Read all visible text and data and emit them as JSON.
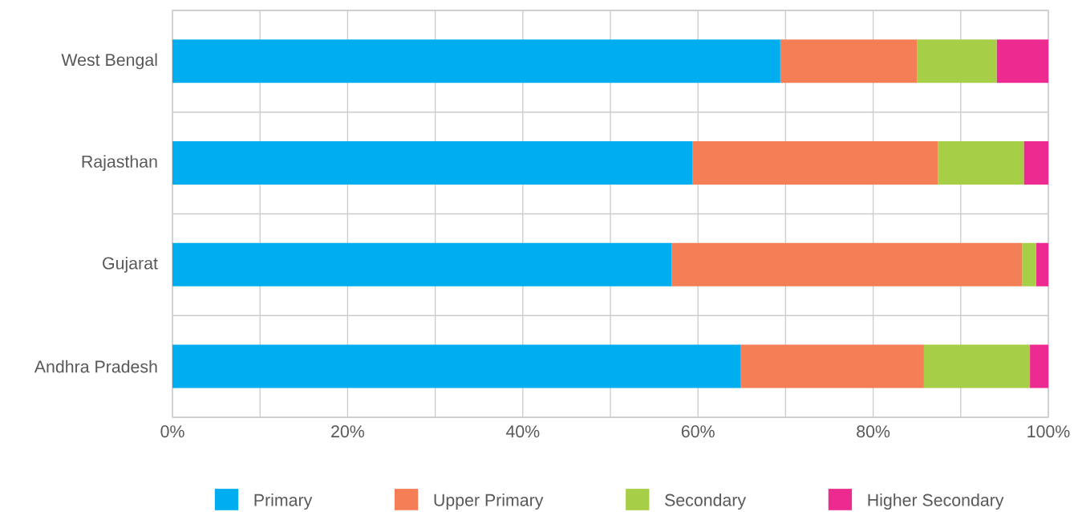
{
  "chart_data": {
    "type": "bar",
    "orientation": "horizontal",
    "stacked": true,
    "categories": [
      "West Bengal",
      "Rajasthan",
      "Gujarat",
      "Andhra Pradesh"
    ],
    "series": [
      {
        "name": "Primary",
        "color": "#00aeef",
        "values": [
          69.4,
          59.4,
          57.0,
          64.9
        ]
      },
      {
        "name": "Upper Primary",
        "color": "#f47f57",
        "values": [
          15.6,
          28.0,
          40.0,
          20.9
        ]
      },
      {
        "name": "Secondary",
        "color": "#a6ce47",
        "values": [
          9.1,
          9.8,
          1.6,
          12.1
        ]
      },
      {
        "name": "Higher Secondary",
        "color": "#ec2a90",
        "values": [
          5.9,
          2.8,
          1.4,
          2.1
        ]
      }
    ],
    "xlim": [
      0,
      100
    ],
    "xticks": [
      {
        "value": 0,
        "label": "0%"
      },
      {
        "value": 10,
        "label": null
      },
      {
        "value": 20,
        "label": "20%"
      },
      {
        "value": 30,
        "label": null
      },
      {
        "value": 40,
        "label": "40%"
      },
      {
        "value": 50,
        "label": null
      },
      {
        "value": 60,
        "label": "60%"
      },
      {
        "value": 70,
        "label": null
      },
      {
        "value": 80,
        "label": "80%"
      },
      {
        "value": 90,
        "label": null
      },
      {
        "value": 100,
        "label": "100%"
      }
    ],
    "grid": true,
    "legend": "bottom"
  }
}
